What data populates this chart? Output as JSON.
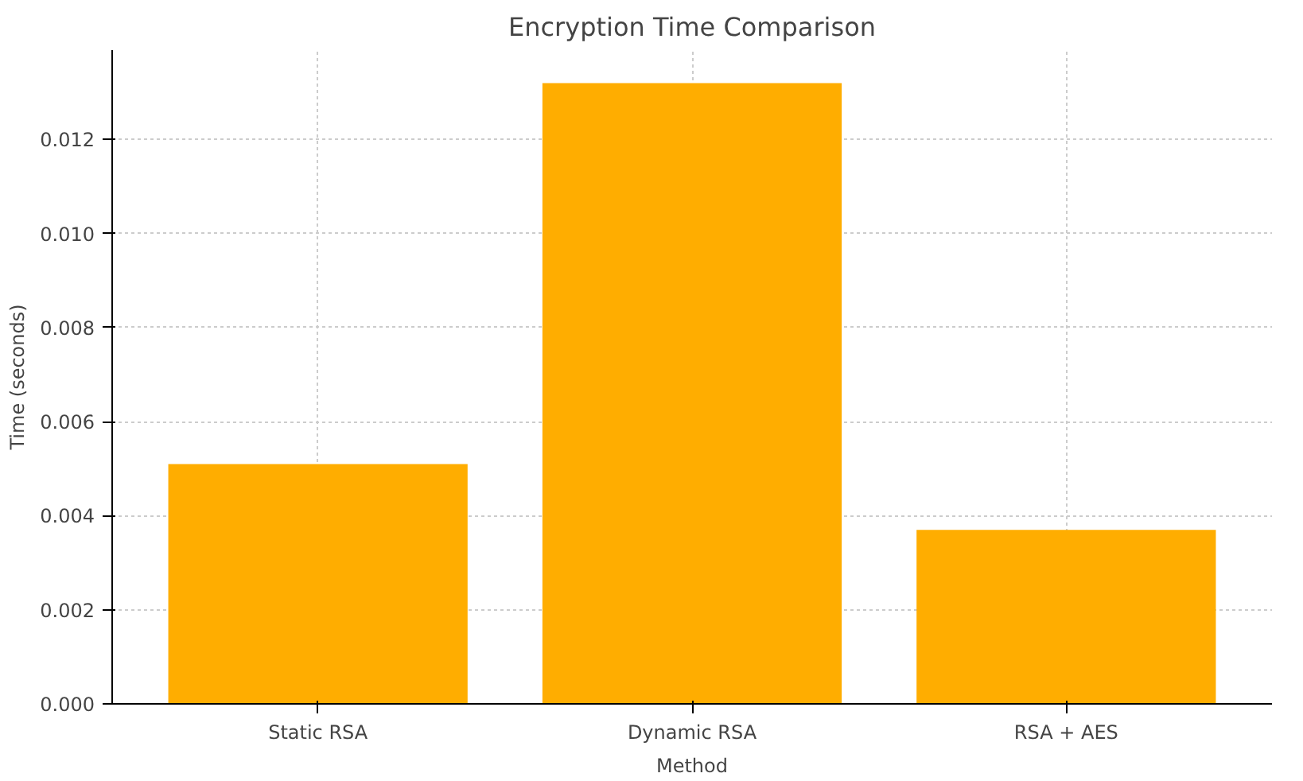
{
  "chart_data": {
    "type": "bar",
    "title": "Encryption Time Comparison",
    "xlabel": "Method",
    "ylabel": "Time (seconds)",
    "categories": [
      "Static RSA",
      "Dynamic RSA",
      "RSA + AES"
    ],
    "values": [
      0.0051,
      0.0132,
      0.0037
    ],
    "color": "#ffad00",
    "ylim": [
      0,
      0.0139
    ],
    "yticks": [
      {
        "value": 0,
        "label": "0.000"
      },
      {
        "value": 0.002,
        "label": "0.002"
      },
      {
        "value": 0.004,
        "label": "0.004"
      },
      {
        "value": 0.006,
        "label": "0.006"
      },
      {
        "value": 0.008,
        "label": "0.008"
      },
      {
        "value": 0.01,
        "label": "0.010"
      },
      {
        "value": 0.012,
        "label": "0.012"
      }
    ],
    "grid": true
  }
}
